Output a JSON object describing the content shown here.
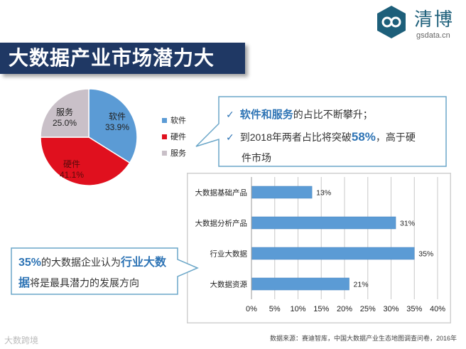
{
  "logo": {
    "name": "清博",
    "sub": "gsdata.cn"
  },
  "title": "大数据产业市场潜力大",
  "chart_data": [
    {
      "type": "pie",
      "categories": [
        "软件",
        "硬件",
        "服务"
      ],
      "values": [
        33.9,
        41.1,
        25.0
      ],
      "labels": [
        "33.9%",
        "41.1%",
        "25.0%"
      ],
      "colors": [
        "#5b9bd5",
        "#e0101e",
        "#c9c0c8"
      ],
      "legend": [
        "软件",
        "硬件",
        "服务"
      ],
      "legend_position": "right"
    },
    {
      "type": "bar",
      "orientation": "horizontal",
      "categories": [
        "大数据基础产品",
        "大数据分析产品",
        "行业大数据",
        "大数据资源"
      ],
      "values": [
        13,
        31,
        35,
        21
      ],
      "value_labels": [
        "13%",
        "31%",
        "35%",
        "21%"
      ],
      "xlim": [
        0,
        40
      ],
      "xticks": [
        "0%",
        "5%",
        "10%",
        "15%",
        "20%",
        "25%",
        "30%",
        "35%",
        "40%"
      ],
      "grid": true,
      "bar_color": "#5b9bd5"
    }
  ],
  "callout": {
    "line1_hl": "软件和服务",
    "line1_rest": "的占比不断攀升；",
    "line2_pre": "到2018年两者占比将突破",
    "line2_hl": "58%",
    "line2_post": "，高于硬",
    "line3": "件市场"
  },
  "bottom": {
    "hl1": "35%",
    "t1": "的大数据企业认为",
    "hl2": "行业大数",
    "hl3": "据",
    "t2": "将是最具潜力的发展方向"
  },
  "source": "数据来源：赛迪智库，中国大数据产业生态地图调查问卷，2016年",
  "watermark": "大数跨境"
}
